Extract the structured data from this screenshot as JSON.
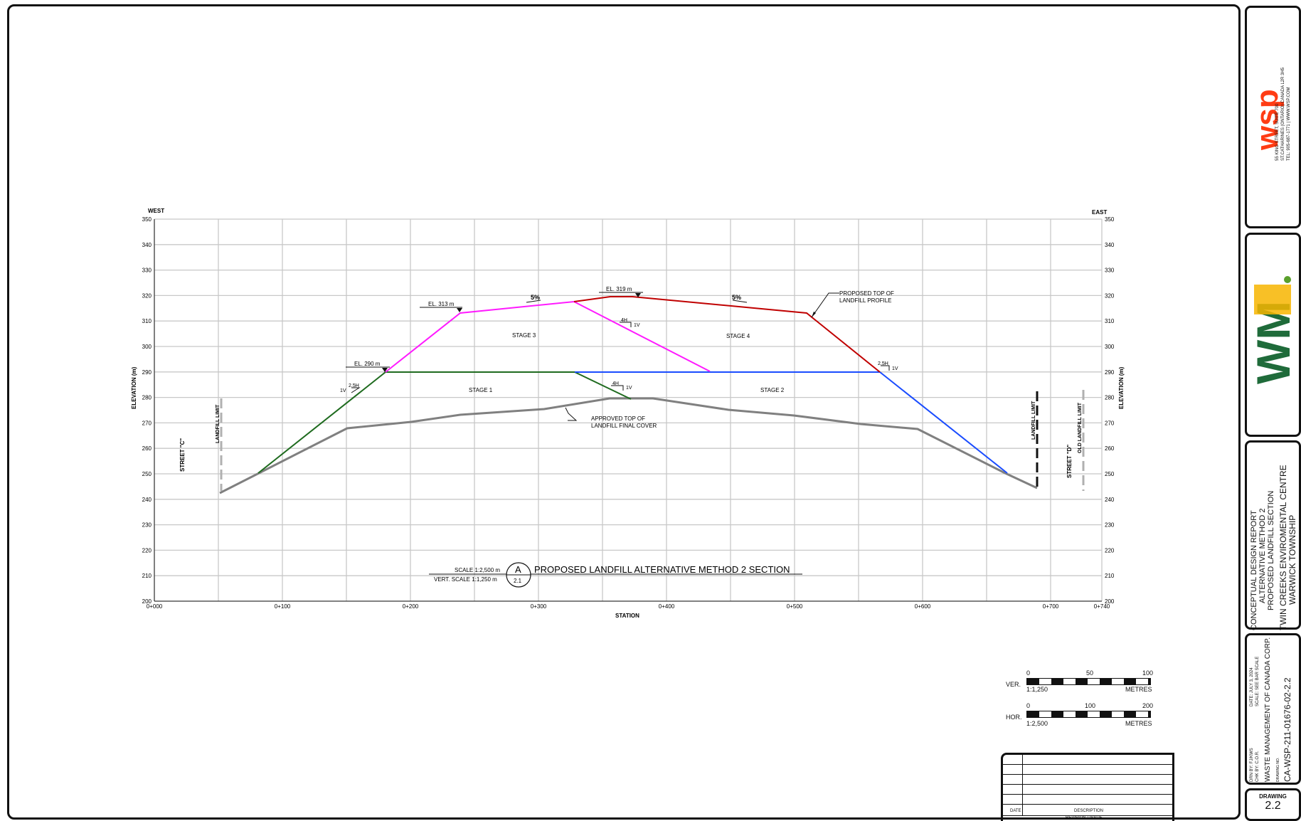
{
  "section": {
    "west_label": "WEST",
    "east_label": "EAST",
    "y_axis_label": "ELEVATION (m)",
    "x_axis_label": "STATION",
    "y_ticks": [
      "350",
      "340",
      "330",
      "320",
      "310",
      "300",
      "290",
      "280",
      "270",
      "260",
      "250",
      "240",
      "230",
      "220",
      "210",
      "200"
    ],
    "y_ticks_left_3rd": "330",
    "x_ticks": [
      "0+000",
      "0+100",
      "0+200",
      "0+300",
      "0+400",
      "0+500",
      "0+600",
      "0+700",
      "0+740"
    ],
    "el_313": "EL. 313 m",
    "el_319": "EL. 319 m",
    "el_290": "EL. 290 m",
    "slope_5a": "5%",
    "slope_5b": "5%",
    "slope_4h_top": "4H",
    "slope_1v_top": "1V",
    "slope_4h_mid": "4H",
    "slope_1v_mid": "1V",
    "slope_25h_left": "2.5H",
    "slope_1v_left": "1V",
    "slope_25h_right": "2.5H",
    "slope_1v_right": "1V",
    "stage1": "STAGE 1",
    "stage2": "STAGE 2",
    "stage3": "STAGE 3",
    "stage4": "STAGE 4",
    "proposed_top_1": "PROPOSED TOP OF",
    "proposed_top_2": "LANDFILL PROFILE",
    "approved_top_1": "APPROVED TOP OF",
    "approved_top_2": "LANDFILL FINAL COVER",
    "street_c": "STREET \"C\"",
    "street_d": "STREET \"D\"",
    "landfill_limit_left": "LANDFILL LIMIT",
    "landfill_limit_right": "LANDFILL LIMIT",
    "old_landfill_limit": "OLD LANDFILL LIMIT",
    "scale_h": "SCALE 1:2,500 m",
    "scale_v": "VERT. SCALE 1:1,250 m",
    "section_letter": "A",
    "section_sheet": "2.1",
    "section_title": "PROPOSED LANDFILL ALTERNATIVE METHOD  2 SECTION",
    "colors": {
      "stage1": "#1f6b1f",
      "stage2": "#1a4cff",
      "stage3": "#ff1aff",
      "stage4": "#c00000",
      "existing": "#808080",
      "grid": "#c8c8c8"
    }
  },
  "scale_bars": {
    "ver_label": "VER.",
    "ver_ticks": [
      "0",
      "50",
      "100"
    ],
    "ver_ratio": "1:1,250",
    "ver_units": "METRES",
    "hor_label": "HOR.",
    "hor_ticks": [
      "0",
      "100",
      "200"
    ],
    "hor_ratio": "1:2,500",
    "hor_units": "METRES"
  },
  "revision_block": {
    "date_header": "DATE",
    "description_header": "DESCRIPTION",
    "footer": "REVISION / ISSUE"
  },
  "title_block": {
    "wsp_logo": "wsp",
    "wsp_address_1": "55 KING STREET, SUITE 700",
    "wsp_address_2": "ST.CATHARINES (ONTARIO) CANADA L2R 3H5",
    "wsp_address_3": "TEL: 905-687-1771 | WWW.WSP.COM",
    "wm_logo": "WM",
    "title_1": "CONCEPTUAL DESIGN REPORT",
    "title_2": "ALTERNATIVE METHOD 2",
    "title_3": "PROPOSED LANDFILL SECTION",
    "title_4": "TWIN CREEKS ENVIROMENTAL CENTRE",
    "title_5": "WARWICK TOWNSHIP",
    "drn_by": "DRN BY:  FJ/KWS",
    "chk_by": "CHK BY:  C.O.R.",
    "date": "DATE:  JULY 3, 2024",
    "scale": "SCALE:  SEE BAR SCALE",
    "client": "WASTE MANAGEMENT OF CANADA CORP.",
    "drawing_no_label": "DRAWING NO.",
    "drawing_no": "CA-WSP-211-01676-02-2.2",
    "drawing_label": "DRAWING",
    "drawing_num": "2.2"
  }
}
